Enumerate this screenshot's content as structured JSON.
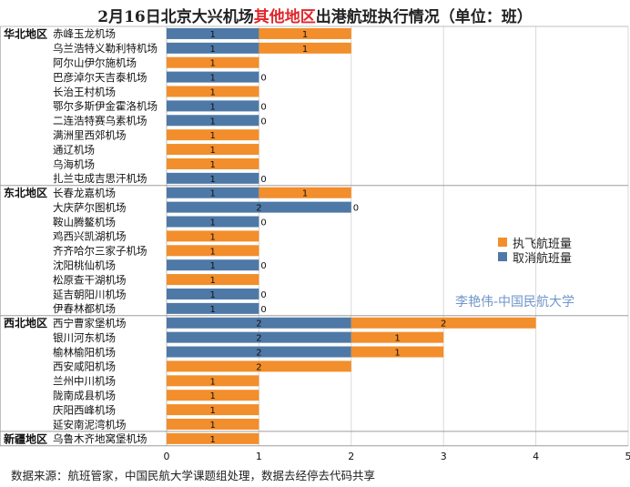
{
  "title": {
    "prefix": "2月16日北京大兴机场",
    "highlight": "其他地区",
    "suffix": "出港航班执行情况（单位：班）",
    "highlight_color": "#e0262a"
  },
  "footnote": "数据来源：航班管家，中国民航大学课题组处理，数据去经停去代码共享",
  "watermark": "李艳伟-中国民航大学",
  "colors": {
    "executed": "#f28e2b",
    "cancelled": "#4e79a7"
  },
  "chart_data": {
    "type": "bar",
    "orientation": "horizontal",
    "stacked": true,
    "xlim": [
      0,
      5
    ],
    "x_ticks": [
      "0",
      "1",
      "2",
      "3",
      "4",
      "5"
    ],
    "grid": true,
    "legend_position": "right",
    "series": [
      {
        "name": "执飞航班量",
        "color": "#f28e2b"
      },
      {
        "name": "取消航班量",
        "color": "#4e79a7"
      }
    ],
    "groups": [
      {
        "region": "华北地区",
        "airports": [
          {
            "name": "赤峰玉龙机场",
            "executed": 1,
            "cancelled": 1
          },
          {
            "name": "乌兰浩特义勒利特机场",
            "executed": 1,
            "cancelled": 1
          },
          {
            "name": "阿尔山伊尔施机场",
            "executed": 1,
            "cancelled": 0
          },
          {
            "name": "巴彦淖尔天吉泰机场",
            "executed": 0,
            "cancelled": 1
          },
          {
            "name": "长治王村机场",
            "executed": 1,
            "cancelled": 0
          },
          {
            "name": "鄂尔多斯伊金霍洛机场",
            "executed": 0,
            "cancelled": 1
          },
          {
            "name": "二连浩特赛乌素机场",
            "executed": 0,
            "cancelled": 1
          },
          {
            "name": "满洲里西郊机场",
            "executed": 1,
            "cancelled": 0
          },
          {
            "name": "通辽机场",
            "executed": 1,
            "cancelled": 0
          },
          {
            "name": "乌海机场",
            "executed": 1,
            "cancelled": 0
          },
          {
            "name": "扎兰屯成吉思汗机场",
            "executed": 0,
            "cancelled": 1
          }
        ]
      },
      {
        "region": "东北地区",
        "airports": [
          {
            "name": "长春龙嘉机场",
            "executed": 1,
            "cancelled": 1
          },
          {
            "name": "大庆萨尔图机场",
            "executed": 0,
            "cancelled": 2
          },
          {
            "name": "鞍山腾鳌机场",
            "executed": 0,
            "cancelled": 1
          },
          {
            "name": "鸡西兴凯湖机场",
            "executed": 1,
            "cancelled": 0
          },
          {
            "name": "齐齐哈尔三家子机场",
            "executed": 1,
            "cancelled": 0
          },
          {
            "name": "沈阳桃仙机场",
            "executed": 0,
            "cancelled": 1
          },
          {
            "name": "松原查干湖机场",
            "executed": 1,
            "cancelled": 0
          },
          {
            "name": "延吉朝阳川机场",
            "executed": 0,
            "cancelled": 1
          },
          {
            "name": "伊春林都机场",
            "executed": 0,
            "cancelled": 1
          }
        ]
      },
      {
        "region": "西北地区",
        "airports": [
          {
            "name": "西宁曹家堡机场",
            "executed": 2,
            "cancelled": 2
          },
          {
            "name": "银川河东机场",
            "executed": 1,
            "cancelled": 2
          },
          {
            "name": "榆林榆阳机场",
            "executed": 1,
            "cancelled": 2
          },
          {
            "name": "西安咸阳机场",
            "executed": 2,
            "cancelled": 0
          },
          {
            "name": "兰州中川机场",
            "executed": 1,
            "cancelled": 0
          },
          {
            "name": "陇南成县机场",
            "executed": 1,
            "cancelled": 0
          },
          {
            "name": "庆阳西峰机场",
            "executed": 1,
            "cancelled": 0
          },
          {
            "name": "延安南泥湾机场",
            "executed": 1,
            "cancelled": 0
          }
        ]
      },
      {
        "region": "新疆地区",
        "airports": [
          {
            "name": "乌鲁木齐地窝堡机场",
            "executed": 1,
            "cancelled": 0
          }
        ]
      }
    ]
  }
}
